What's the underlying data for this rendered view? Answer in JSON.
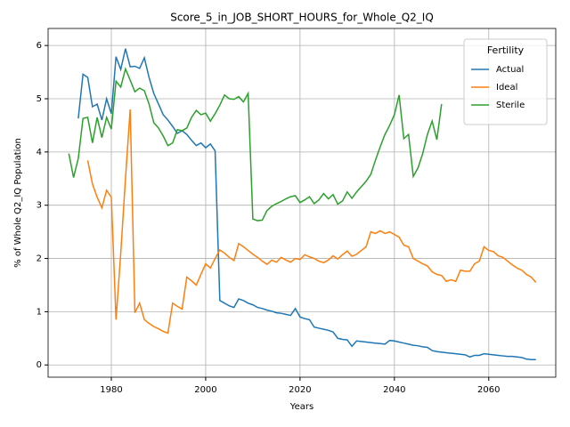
{
  "chart_data": {
    "type": "line",
    "title": "Score_5_in_JOB_SHORT_HOURS_for_Whole_Q2_IQ",
    "xlabel": "Years",
    "ylabel": "% of Whole Q2_IQ Population",
    "x": [
      1971,
      1972,
      1973,
      1974,
      1975,
      1976,
      1977,
      1978,
      1979,
      1980,
      1981,
      1982,
      1983,
      1984,
      1985,
      1986,
      1987,
      1988,
      1989,
      1990,
      1991,
      1992,
      1993,
      1994,
      1995,
      1996,
      1997,
      1998,
      1999,
      2000,
      2001,
      2002,
      2003,
      2004,
      2005,
      2006,
      2007,
      2008,
      2009,
      2010,
      2011,
      2012,
      2013,
      2014,
      2015,
      2016,
      2017,
      2018,
      2019,
      2020,
      2021,
      2022,
      2023,
      2024,
      2025,
      2026,
      2027,
      2028,
      2029,
      2030,
      2031,
      2032,
      2033,
      2034,
      2035,
      2036,
      2037,
      2038,
      2039,
      2040,
      2041,
      2042,
      2043,
      2044,
      2045,
      2046,
      2047,
      2048,
      2049,
      2050,
      2051,
      2052,
      2053,
      2054,
      2055,
      2056,
      2057,
      2058,
      2059,
      2060,
      2061,
      2062,
      2063,
      2064,
      2065,
      2066,
      2067,
      2068,
      2069,
      2070
    ],
    "series": [
      {
        "name": "Actual",
        "color": "#1f77b4",
        "values": [
          null,
          null,
          4.63,
          5.46,
          5.4,
          4.85,
          4.9,
          4.6,
          5.0,
          4.72,
          5.79,
          5.55,
          5.94,
          5.6,
          5.61,
          5.57,
          5.77,
          5.4,
          5.1,
          4.9,
          4.7,
          4.6,
          4.48,
          4.35,
          4.4,
          4.33,
          4.22,
          4.12,
          4.17,
          4.08,
          4.15,
          4.02,
          1.21,
          1.16,
          1.11,
          1.08,
          1.24,
          1.21,
          1.16,
          1.13,
          1.08,
          1.06,
          1.03,
          1.01,
          0.98,
          0.97,
          0.95,
          0.93,
          1.06,
          0.9,
          0.87,
          0.85,
          0.71,
          0.69,
          0.67,
          0.65,
          0.62,
          0.5,
          0.48,
          0.47,
          0.35,
          0.45,
          0.44,
          0.43,
          0.42,
          0.41,
          0.4,
          0.39,
          0.46,
          0.45,
          0.43,
          0.41,
          0.39,
          0.37,
          0.36,
          0.34,
          0.33,
          0.27,
          0.25,
          0.24,
          0.23,
          0.22,
          0.21,
          0.2,
          0.19,
          0.15,
          0.18,
          0.18,
          0.21,
          0.2,
          0.19,
          0.18,
          0.17,
          0.16,
          0.16,
          0.15,
          0.14,
          0.11,
          0.1,
          0.1
        ]
      },
      {
        "name": "Ideal",
        "color": "#ff7f0e",
        "values": [
          null,
          null,
          null,
          null,
          3.84,
          3.4,
          3.15,
          2.95,
          3.28,
          3.15,
          0.85,
          2.1,
          3.5,
          4.8,
          0.98,
          1.16,
          0.85,
          0.78,
          0.72,
          0.68,
          0.63,
          0.6,
          1.16,
          1.1,
          1.05,
          1.65,
          1.58,
          1.5,
          1.7,
          1.9,
          1.82,
          2.0,
          2.16,
          2.1,
          2.02,
          1.96,
          2.28,
          2.22,
          2.15,
          2.08,
          2.02,
          1.95,
          1.89,
          1.97,
          1.93,
          2.02,
          1.97,
          1.93,
          2.0,
          1.98,
          2.07,
          2.03,
          2.0,
          1.95,
          1.92,
          1.97,
          2.05,
          1.99,
          2.07,
          2.14,
          2.04,
          2.08,
          2.15,
          2.22,
          2.5,
          2.47,
          2.52,
          2.47,
          2.5,
          2.45,
          2.4,
          2.25,
          2.22,
          2.0,
          1.95,
          1.9,
          1.86,
          1.75,
          1.7,
          1.68,
          1.57,
          1.6,
          1.57,
          1.78,
          1.76,
          1.76,
          1.9,
          1.95,
          2.22,
          2.15,
          2.13,
          2.05,
          2.02,
          1.95,
          1.88,
          1.82,
          1.78,
          1.7,
          1.65,
          1.55
        ]
      },
      {
        "name": "Sterile",
        "color": "#2ca02c",
        "values": [
          3.97,
          3.52,
          3.88,
          4.63,
          4.65,
          4.17,
          4.65,
          4.27,
          4.65,
          4.43,
          5.33,
          5.22,
          5.56,
          5.35,
          5.13,
          5.2,
          5.15,
          4.9,
          4.55,
          4.45,
          4.3,
          4.12,
          4.17,
          4.42,
          4.4,
          4.45,
          4.65,
          4.78,
          4.7,
          4.73,
          4.58,
          4.72,
          4.88,
          5.07,
          5.0,
          4.99,
          5.04,
          4.94,
          5.1,
          2.74,
          2.71,
          2.72,
          2.9,
          2.98,
          3.03,
          3.07,
          3.12,
          3.16,
          3.18,
          3.05,
          3.1,
          3.16,
          3.03,
          3.1,
          3.22,
          3.12,
          3.2,
          3.02,
          3.08,
          3.25,
          3.13,
          3.25,
          3.35,
          3.45,
          3.58,
          3.85,
          4.1,
          4.33,
          4.5,
          4.7,
          5.07,
          4.25,
          4.33,
          3.54,
          3.7,
          3.97,
          4.33,
          4.58,
          4.23,
          4.9,
          null,
          null,
          null,
          null,
          null,
          null,
          null,
          null,
          null,
          null,
          null,
          null,
          null,
          null,
          null,
          null,
          null,
          null,
          null,
          null
        ]
      }
    ],
    "xlim": [
      1966.6,
      2074.2
    ],
    "ylim": [
      -0.23,
      6.32
    ],
    "xticks": [
      1980,
      2000,
      2020,
      2040,
      2060
    ],
    "yticks": [
      0,
      1,
      2,
      3,
      4,
      5,
      6
    ],
    "grid": true,
    "legend_title": "Fertility",
    "legend": "upper right"
  }
}
